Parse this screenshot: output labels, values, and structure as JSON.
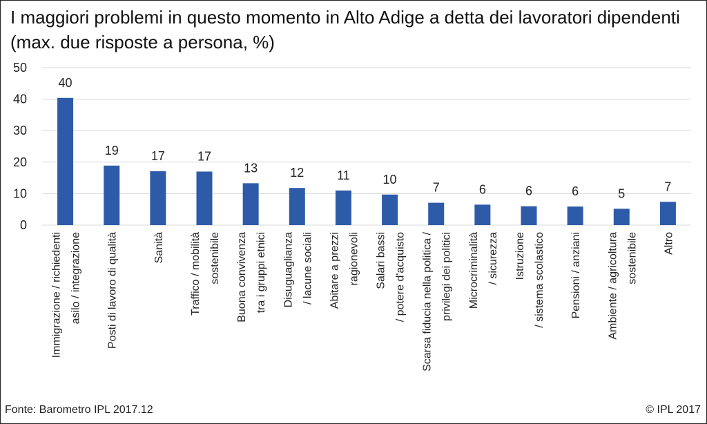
{
  "title": "I maggiori problemi in questo momento in Alto Adige a detta dei lavoratori dipendenti (max. due risposte a persona, %)",
  "footer": {
    "source": "Fonte: Barometro IPL 2017.12",
    "copyright": "© IPL 2017"
  },
  "colors": {
    "bar": "#2E5BA8",
    "grid": "#D9D9D9"
  },
  "chart_data": {
    "type": "bar",
    "title": "I maggiori problemi in questo momento in Alto Adige a detta dei lavoratori dipendenti (max. due risposte a persona, %)",
    "categories": [
      [
        "Immigrazione / richiedenti",
        "asilo / integrazione"
      ],
      [
        "Posti di lavoro di qualità"
      ],
      [
        "Sanità"
      ],
      [
        "Traffico / mobilità",
        "sostenibile"
      ],
      [
        "Buona convivenza",
        "tra i gruppi etnici"
      ],
      [
        "Disuguaglianza",
        "/ lacune sociali"
      ],
      [
        "Abitare a prezzi",
        "ragionevoli"
      ],
      [
        "Salari bassi",
        "/ potere d'acquisto"
      ],
      [
        "Scarsa fiducia nella politica /",
        "privilegi dei politici"
      ],
      [
        "Microcriminalità",
        "/ sicurezza"
      ],
      [
        "Istruzione",
        "/ sistema scolastico"
      ],
      [
        "Pensioni / anziani"
      ],
      [
        "Ambiente / agricoltura",
        "sostenibile"
      ],
      [
        "Altro"
      ]
    ],
    "values": [
      40.4,
      18.9,
      17.1,
      17.0,
      13.3,
      11.8,
      11.0,
      9.7,
      7.1,
      6.5,
      6.0,
      5.9,
      5.2,
      7.4
    ],
    "value_labels": [
      "40",
      "19",
      "17",
      "17",
      "13",
      "12",
      "11",
      "10",
      "7",
      "6",
      "6",
      "6",
      "5",
      "7"
    ],
    "yticks": [
      "0",
      "10",
      "20",
      "30",
      "40",
      "50"
    ],
    "ylim": [
      0,
      50
    ],
    "grid": true,
    "legend": "none"
  }
}
